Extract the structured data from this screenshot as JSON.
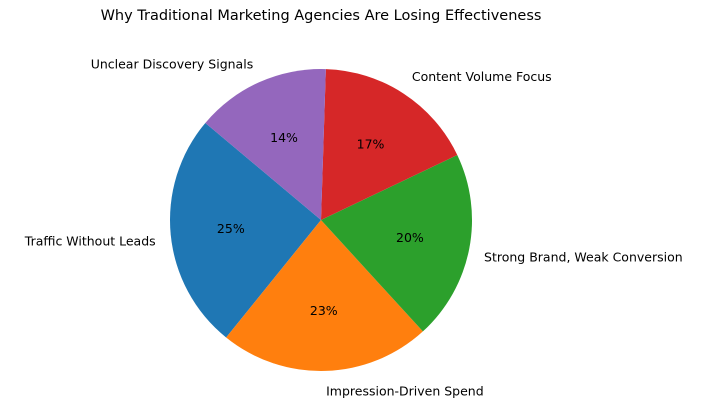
{
  "chart_data": {
    "type": "pie",
    "title": "Why Traditional Marketing Agencies Are Losing Effectiveness",
    "categories": [
      "Traffic Without Leads",
      "Impression-Driven Spend",
      "Strong Brand, Weak Conversion",
      "Content Volume Focus",
      "Unclear Discovery Signals"
    ],
    "values": [
      25.3,
      22.6,
      20.3,
      17.4,
      14.4
    ],
    "percent_labels": [
      "25%",
      "23%",
      "20%",
      "17%",
      "14%"
    ],
    "colors": [
      "#1f77b4",
      "#ff7f0e",
      "#2ca02c",
      "#d62728",
      "#9467bd"
    ],
    "start_angle": 140,
    "direction": "counterclockwise",
    "legend": "none",
    "xlabel": "",
    "ylabel": ""
  },
  "title": "Why Traditional Marketing Agencies Are Losing Effectiveness"
}
